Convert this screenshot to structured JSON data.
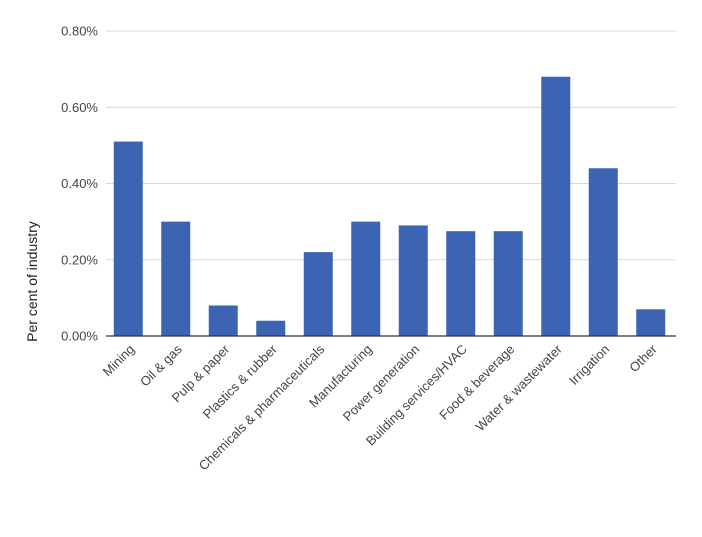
{
  "chart_data": {
    "type": "bar",
    "title": "",
    "xlabel": "",
    "ylabel": "Per cent of industry",
    "ylim": [
      0,
      0.8
    ],
    "yticks": [
      0.0,
      0.2,
      0.4,
      0.6,
      0.8
    ],
    "ytick_labels": [
      "0.00%",
      "0.20%",
      "0.40%",
      "0.60%",
      "0.80%"
    ],
    "grid": true,
    "legend": "none",
    "bar_color": "#3d64b3",
    "categories": [
      "Mining",
      "Oil & gas",
      "Pulp & paper",
      "Plastics & rubber",
      "Chemicals & pharmaceuticals",
      "Manufacturing",
      "Power generation",
      "Building services/HVAC",
      "Food & beverage",
      "Water & wastewater",
      "Irrigation",
      "Other"
    ],
    "values": [
      0.51,
      0.3,
      0.08,
      0.04,
      0.22,
      0.3,
      0.29,
      0.275,
      0.275,
      0.68,
      0.44,
      0.07
    ]
  }
}
